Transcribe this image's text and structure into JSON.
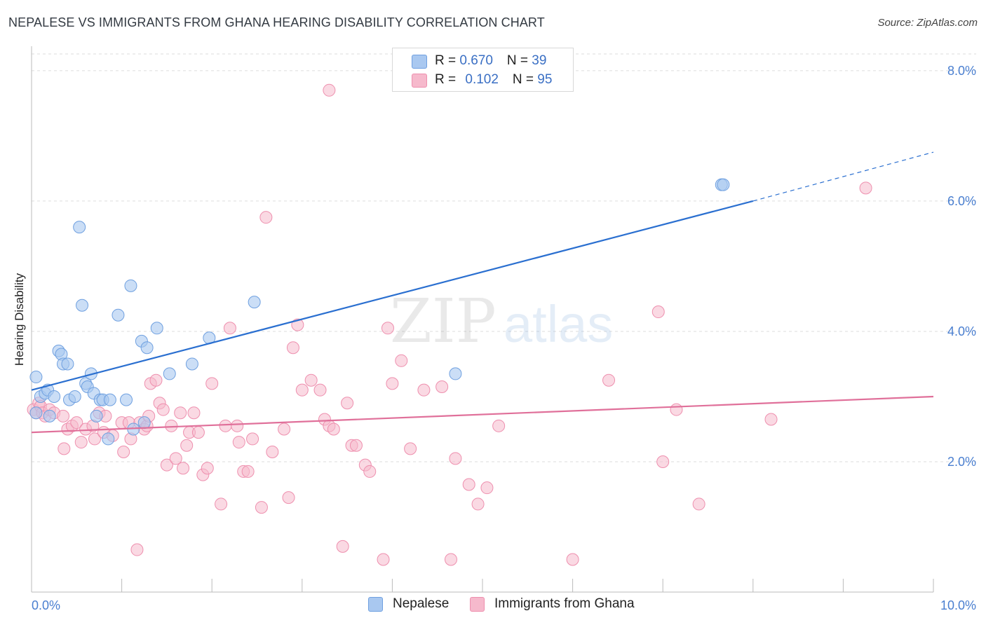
{
  "title": "NEPALESE VS IMMIGRANTS FROM GHANA HEARING DISABILITY CORRELATION CHART",
  "source": "Source: ZipAtlas.com",
  "watermark": {
    "zip": "ZIP",
    "atlas": "atlas"
  },
  "colors": {
    "blue_fill": "#a9c8f0",
    "blue_stroke": "#6fa0e0",
    "blue_line": "#2a6fd0",
    "pink_fill": "#f6b9cc",
    "pink_stroke": "#ee8fae",
    "pink_line": "#e0709a",
    "tick_text": "#4a7fd0",
    "grid": "#dddddd"
  },
  "legend": {
    "rows": [
      {
        "r_label": "R = ",
        "r_value": "0.670",
        "n_label": "N = ",
        "n_value": "39"
      },
      {
        "r_label": "R = ",
        "r_value": "0.102",
        "n_label": "N = ",
        "n_value": "95"
      }
    ]
  },
  "bottom_legend": {
    "series1": "Nepalese",
    "series2": "Immigrants from Ghana"
  },
  "chart_data": {
    "type": "scatter",
    "xlabel": "",
    "ylabel": "Hearing Disability",
    "xlim": [
      0,
      10
    ],
    "ylim": [
      0,
      8.3
    ],
    "x_tick_labels": [
      {
        "v": 0,
        "label": "0.0%"
      },
      {
        "v": 10,
        "label": "10.0%"
      }
    ],
    "y_tick_labels": [
      {
        "v": 2,
        "label": "2.0%"
      },
      {
        "v": 4,
        "label": "4.0%"
      },
      {
        "v": 6,
        "label": "6.0%"
      },
      {
        "v": 8,
        "label": "8.0%"
      }
    ],
    "x_minor_ticks": [
      1,
      2,
      3,
      4,
      5,
      6,
      7,
      8,
      9,
      10
    ],
    "series": [
      {
        "name": "Nepalese",
        "r": 0.67,
        "n": 39,
        "trend": {
          "x0": 0,
          "y0": 3.1,
          "x1": 8.0,
          "y1": 6.0,
          "dash_to_x": 10.0,
          "dash_to_y": 6.75
        },
        "points": [
          [
            0.05,
            3.3
          ],
          [
            0.1,
            3.0
          ],
          [
            0.15,
            3.05
          ],
          [
            0.18,
            3.1
          ],
          [
            0.2,
            2.7
          ],
          [
            0.25,
            3.0
          ],
          [
            0.3,
            3.7
          ],
          [
            0.33,
            3.65
          ],
          [
            0.35,
            3.5
          ],
          [
            0.4,
            3.5
          ],
          [
            0.42,
            2.95
          ],
          [
            0.48,
            3.0
          ],
          [
            0.53,
            5.6
          ],
          [
            0.56,
            4.4
          ],
          [
            0.6,
            3.2
          ],
          [
            0.62,
            3.15
          ],
          [
            0.66,
            3.35
          ],
          [
            0.69,
            3.05
          ],
          [
            0.72,
            2.7
          ],
          [
            0.76,
            2.95
          ],
          [
            0.79,
            2.95
          ],
          [
            0.85,
            2.35
          ],
          [
            0.87,
            2.95
          ],
          [
            0.96,
            4.25
          ],
          [
            1.05,
            2.95
          ],
          [
            1.1,
            4.7
          ],
          [
            1.13,
            2.5
          ],
          [
            1.22,
            3.85
          ],
          [
            1.25,
            2.6
          ],
          [
            1.28,
            3.75
          ],
          [
            1.39,
            4.05
          ],
          [
            1.53,
            3.35
          ],
          [
            1.78,
            3.5
          ],
          [
            1.97,
            3.9
          ],
          [
            2.47,
            4.45
          ],
          [
            4.7,
            3.35
          ],
          [
            7.65,
            6.25
          ],
          [
            7.67,
            6.25
          ],
          [
            0.05,
            2.75
          ]
        ]
      },
      {
        "name": "Immigrants from Ghana",
        "r": 0.102,
        "n": 95,
        "trend": {
          "x0": 0,
          "y0": 2.45,
          "x1": 10.0,
          "y1": 3.0
        },
        "points": [
          [
            0.02,
            2.8
          ],
          [
            0.05,
            2.75
          ],
          [
            0.08,
            2.9
          ],
          [
            0.1,
            2.85
          ],
          [
            0.12,
            2.75
          ],
          [
            0.15,
            2.7
          ],
          [
            0.2,
            2.8
          ],
          [
            0.25,
            2.75
          ],
          [
            0.35,
            2.7
          ],
          [
            0.4,
            2.5
          ],
          [
            0.45,
            2.55
          ],
          [
            0.5,
            2.6
          ],
          [
            0.36,
            2.2
          ],
          [
            0.55,
            2.3
          ],
          [
            0.6,
            2.5
          ],
          [
            0.68,
            2.55
          ],
          [
            0.7,
            2.35
          ],
          [
            0.75,
            2.75
          ],
          [
            0.8,
            2.45
          ],
          [
            0.82,
            2.7
          ],
          [
            0.9,
            2.4
          ],
          [
            1.0,
            2.6
          ],
          [
            1.02,
            2.15
          ],
          [
            1.08,
            2.6
          ],
          [
            1.1,
            2.35
          ],
          [
            1.2,
            2.6
          ],
          [
            1.25,
            2.5
          ],
          [
            1.28,
            2.55
          ],
          [
            1.3,
            2.7
          ],
          [
            1.32,
            3.2
          ],
          [
            1.38,
            3.25
          ],
          [
            1.42,
            2.9
          ],
          [
            1.46,
            2.8
          ],
          [
            1.5,
            1.95
          ],
          [
            1.55,
            2.55
          ],
          [
            1.6,
            2.05
          ],
          [
            1.65,
            2.75
          ],
          [
            1.68,
            1.9
          ],
          [
            1.72,
            2.25
          ],
          [
            1.75,
            2.45
          ],
          [
            1.8,
            2.75
          ],
          [
            1.85,
            2.45
          ],
          [
            1.9,
            1.8
          ],
          [
            1.95,
            1.9
          ],
          [
            2.0,
            3.2
          ],
          [
            2.1,
            1.35
          ],
          [
            2.15,
            2.55
          ],
          [
            2.2,
            4.05
          ],
          [
            2.28,
            2.55
          ],
          [
            2.3,
            2.3
          ],
          [
            2.35,
            1.85
          ],
          [
            2.4,
            1.85
          ],
          [
            2.45,
            2.35
          ],
          [
            2.55,
            1.3
          ],
          [
            2.6,
            5.75
          ],
          [
            2.67,
            2.15
          ],
          [
            2.8,
            2.5
          ],
          [
            2.85,
            1.45
          ],
          [
            2.9,
            3.75
          ],
          [
            2.95,
            4.1
          ],
          [
            3.0,
            3.1
          ],
          [
            3.1,
            3.25
          ],
          [
            3.2,
            3.1
          ],
          [
            3.25,
            2.65
          ],
          [
            3.3,
            2.55
          ],
          [
            3.35,
            2.5
          ],
          [
            3.45,
            0.7
          ],
          [
            3.5,
            2.9
          ],
          [
            3.55,
            2.25
          ],
          [
            3.6,
            2.25
          ],
          [
            3.7,
            1.95
          ],
          [
            3.75,
            1.85
          ],
          [
            3.9,
            0.5
          ],
          [
            3.95,
            4.05
          ],
          [
            4.0,
            3.2
          ],
          [
            4.1,
            3.55
          ],
          [
            4.2,
            2.2
          ],
          [
            4.35,
            3.1
          ],
          [
            4.55,
            3.15
          ],
          [
            4.65,
            0.5
          ],
          [
            4.7,
            2.05
          ],
          [
            4.85,
            1.65
          ],
          [
            4.95,
            1.35
          ],
          [
            5.05,
            1.6
          ],
          [
            3.3,
            7.7
          ],
          [
            1.17,
            0.65
          ],
          [
            5.18,
            2.55
          ],
          [
            6.0,
            0.5
          ],
          [
            6.4,
            3.25
          ],
          [
            6.95,
            4.3
          ],
          [
            7.0,
            2.0
          ],
          [
            7.15,
            2.8
          ],
          [
            7.4,
            1.35
          ],
          [
            8.2,
            2.65
          ],
          [
            9.25,
            6.2
          ]
        ]
      }
    ]
  }
}
